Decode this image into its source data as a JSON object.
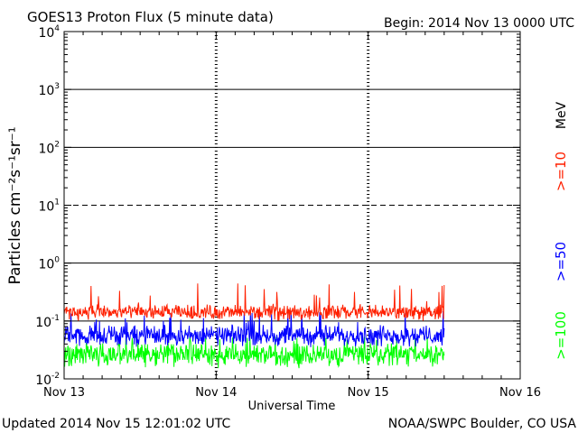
{
  "chart_data": {
    "type": "line",
    "title": "GOES13 Proton Flux (5 minute data)",
    "begin": "Begin: 2014 Nov 13 0000 UTC",
    "xlabel": "Universal Time",
    "ylabel": "Particles cm⁻²s⁻¹sr⁻¹",
    "yscale": "log",
    "ylim": [
      0.01,
      10000
    ],
    "ytick_base": "10",
    "ytick_exponents": [
      "4",
      "3",
      "2",
      "1",
      "0",
      "-1",
      "-2"
    ],
    "xlim": [
      "2014-11-13",
      "2014-11-16"
    ],
    "x_ticks": [
      {
        "date": "2014-11-13",
        "label": "Nov 13"
      },
      {
        "date": "2014-11-14",
        "label": "Nov 14"
      },
      {
        "date": "2014-11-15",
        "label": "Nov 15"
      },
      {
        "date": "2014-11-16",
        "label": "Nov 16"
      }
    ],
    "horizontal_lines": [
      {
        "value": 1000,
        "style": "solid"
      },
      {
        "value": 100,
        "style": "solid"
      },
      {
        "value": 10,
        "style": "dashed"
      },
      {
        "value": 1,
        "style": "solid"
      },
      {
        "value": 0.1,
        "style": "solid"
      }
    ],
    "data_end": "2014-11-15T12:00",
    "legend_unit": "MeV",
    "series": [
      {
        "name": ">=10",
        "color": "#ff2000",
        "typical_min": 0.1,
        "typical_max": 0.2,
        "peak": 0.45
      },
      {
        "name": ">=50",
        "color": "#0000ff",
        "typical_min": 0.035,
        "typical_max": 0.09,
        "peak": 0.15
      },
      {
        "name": ">=100",
        "color": "#00ff00",
        "typical_min": 0.015,
        "typical_max": 0.045,
        "peak": 0.055
      }
    ]
  },
  "footer": {
    "updated": "Updated 2014 Nov 15 12:01:02 UTC",
    "credit": "NOAA/SWPC Boulder, CO USA"
  }
}
